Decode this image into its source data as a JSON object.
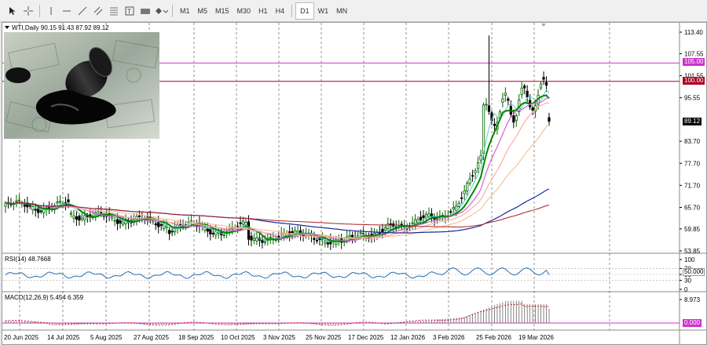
{
  "toolbar": {
    "timeframes": [
      "M1",
      "M5",
      "M15",
      "M30",
      "H1",
      "H4",
      "D1",
      "W1",
      "MN"
    ],
    "active_timeframe": "D1"
  },
  "chart": {
    "header": "WTI,Daily  90.15 91.43 87.92 89.12",
    "current_price_tag": "89.12",
    "line_105_tag": "105.00",
    "line_100_tag": "100.00",
    "price_axis_ticks": [
      "113.40",
      "107.55",
      "101.55",
      "95.55",
      "89.12",
      "83.70",
      "77.70",
      "71.70",
      "65.70",
      "59.85",
      "53.85"
    ],
    "date_axis_ticks": [
      "20 Jun 2025",
      "14 Jul 2025",
      "5 Aug 2025",
      "27 Aug 2025",
      "18 Sep 2025",
      "10 Oct 2025",
      "3 Nov 2025",
      "25 Nov 2025",
      "17 Dec 2025",
      "12 Jan 2026",
      "3 Feb 2026",
      "25 Feb 2026",
      "19 Mar 2026"
    ],
    "colors": {
      "bull": "#006400",
      "bear": "#000000",
      "hline_magenta": "#cc33cc",
      "hline_red": "#aa0022"
    }
  },
  "rsi": {
    "label": "RSI(14) 48.7668",
    "axis_ticks": [
      "100",
      "70",
      "50",
      "30",
      "0"
    ],
    "value_tag": "50.000"
  },
  "macd": {
    "label": "MACD(12,26,9) 5.454 6.359",
    "axis_ticks": [
      "8.973"
    ],
    "zero_tag": "0.000"
  },
  "thumbnail": {
    "alt": "oil barrel and dollar bills"
  }
}
